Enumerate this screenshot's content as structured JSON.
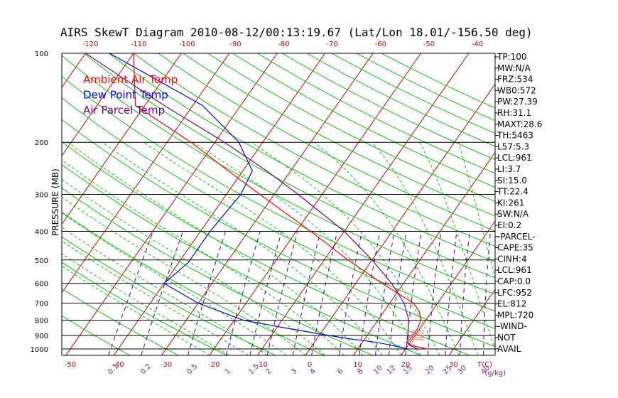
{
  "chart_data": {
    "type": "line",
    "title": "AIRS SkewT Diagram 2010-08-12/00:13:19.67 (Lat/Lon 18.01/-156.50 deg)",
    "ylabel": "PRESSURE (MB)",
    "xlabel_right": "T(C)",
    "mixing_ratio_unit": "(g/kg)",
    "y_scale": "log",
    "ylim": [
      1050,
      100
    ],
    "xlim_surface": [
      -53,
      40
    ],
    "pressure_ticks": [
      100,
      200,
      300,
      400,
      500,
      600,
      700,
      800,
      900,
      1000
    ],
    "bottom_temp_ticks": [
      -50,
      -40,
      -30,
      -20,
      -10,
      0,
      10,
      20,
      30
    ],
    "top_temp_ticks": [
      -120,
      -110,
      -100,
      -90,
      -80,
      -70,
      -60,
      -50,
      -40
    ],
    "mixing_ratio_labels": [
      "0.1",
      "0.2",
      "0.5",
      "1",
      "1.5",
      "2",
      "3",
      "4",
      "6",
      "8",
      "10",
      "12",
      "15",
      "20",
      "25",
      "30",
      "40"
    ],
    "legend": [
      {
        "name": "Ambient Air Temp",
        "color": "#ff0000"
      },
      {
        "name": "Dew Point Temp",
        "color": "#0000ff"
      },
      {
        "name": "Air Parcel Temp",
        "color": "#800080"
      }
    ],
    "series": [
      {
        "name": "Ambient Air Temp",
        "points": [
          [
            1000,
            24.5
          ],
          [
            975,
            21
          ],
          [
            950,
            19.2
          ],
          [
            925,
            19.5
          ],
          [
            900,
            19.5
          ],
          [
            850,
            19.5
          ],
          [
            800,
            19
          ],
          [
            750,
            17.5
          ],
          [
            700,
            15
          ],
          [
            600,
            5.5
          ],
          [
            500,
            -5
          ],
          [
            400,
            -17
          ],
          [
            300,
            -33
          ],
          [
            250,
            -43
          ],
          [
            200,
            -55
          ],
          [
            150,
            -72
          ],
          [
            100,
            -80
          ]
        ]
      },
      {
        "name": "Dew Point Temp",
        "points": [
          [
            1000,
            20.5
          ],
          [
            975,
            17
          ],
          [
            950,
            13
          ],
          [
            925,
            7
          ],
          [
            900,
            2
          ],
          [
            850,
            -8
          ],
          [
            800,
            -18
          ],
          [
            700,
            -30
          ],
          [
            600,
            -40
          ],
          [
            510,
            -38
          ],
          [
            400,
            -38
          ],
          [
            300,
            -37
          ],
          [
            250,
            -38
          ],
          [
            200,
            -45
          ],
          [
            150,
            -58
          ],
          [
            100,
            -85
          ]
        ]
      },
      {
        "name": "Air Parcel Temp",
        "points": [
          [
            1000,
            22.5
          ],
          [
            975,
            20.5
          ],
          [
            950,
            19.5
          ],
          [
            900,
            18.5
          ],
          [
            850,
            17.5
          ],
          [
            800,
            16.5
          ],
          [
            700,
            13
          ],
          [
            600,
            7.5
          ],
          [
            500,
            0
          ],
          [
            400,
            -10
          ],
          [
            300,
            -25
          ],
          [
            250,
            -35
          ],
          [
            200,
            -48
          ],
          [
            150,
            -66
          ],
          [
            100,
            -90
          ]
        ]
      }
    ],
    "hodo_marker": {
      "p_top": 870,
      "p_bottom": 930,
      "t_left": 19,
      "t_right": 21
    },
    "stats": [
      "TP:100",
      "MW:N/A",
      "FRZ:534",
      "WB0:572",
      "PW:27.39",
      "RH:31.1",
      "MAXT:28.6",
      "TH:5463",
      "L57:5.3",
      "LCL:961",
      "LI:3.7",
      "SI:15.0",
      "TT:22.4",
      "KI:261",
      "SW:N/A",
      "EI:0.2",
      "-PARCEL-",
      "CAPE:35",
      "CINH:4",
      "LCL:961",
      "CAP:0.0",
      "LFC:952",
      "EL:812",
      "MPL:720",
      "-WIND-",
      "NOT",
      "AVAIL"
    ],
    "colors": {
      "isotherm": "#cc0000",
      "dry_adiabat": "#00cc00",
      "moist_adiabat": "#00cc00",
      "mixing_ratio": "#4b0082",
      "isobar": "#000000",
      "hodo": "#ff6666"
    }
  }
}
